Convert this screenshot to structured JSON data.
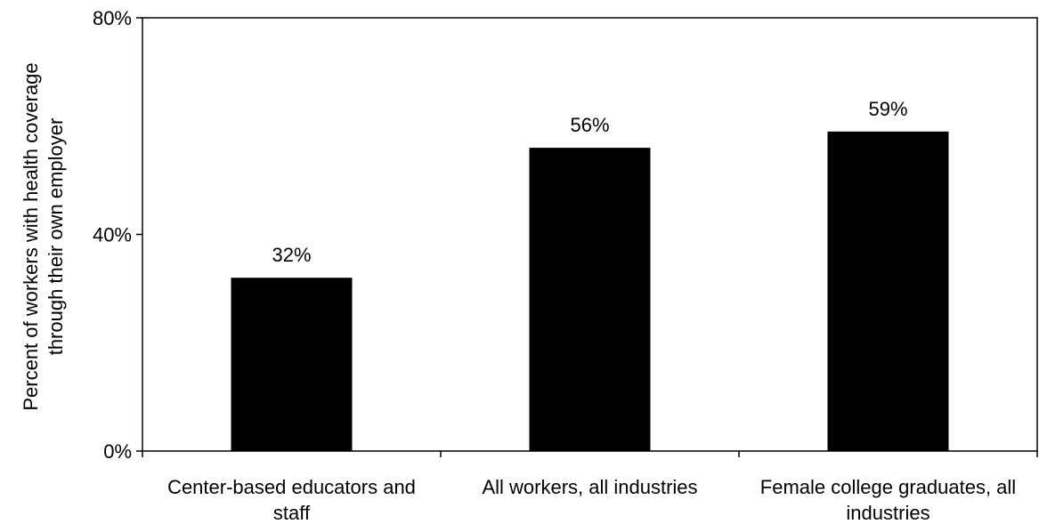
{
  "chart_data": {
    "type": "bar",
    "categories": [
      [
        "Center-based educators and",
        "staff"
      ],
      [
        "All workers, all industries"
      ],
      [
        "Female college graduates, all",
        "industries"
      ]
    ],
    "values": [
      32,
      56,
      59
    ],
    "data_labels": [
      "32%",
      "56%",
      "59%"
    ],
    "ylabel": [
      "Percent of workers with health coverage",
      "through their own employer"
    ],
    "ylim": [
      0,
      80
    ],
    "yticks": [
      0,
      40,
      80
    ],
    "ytick_labels": [
      "0%",
      "40%",
      "80%"
    ],
    "bar_color": "#000000",
    "grid": false,
    "legend": "none"
  }
}
